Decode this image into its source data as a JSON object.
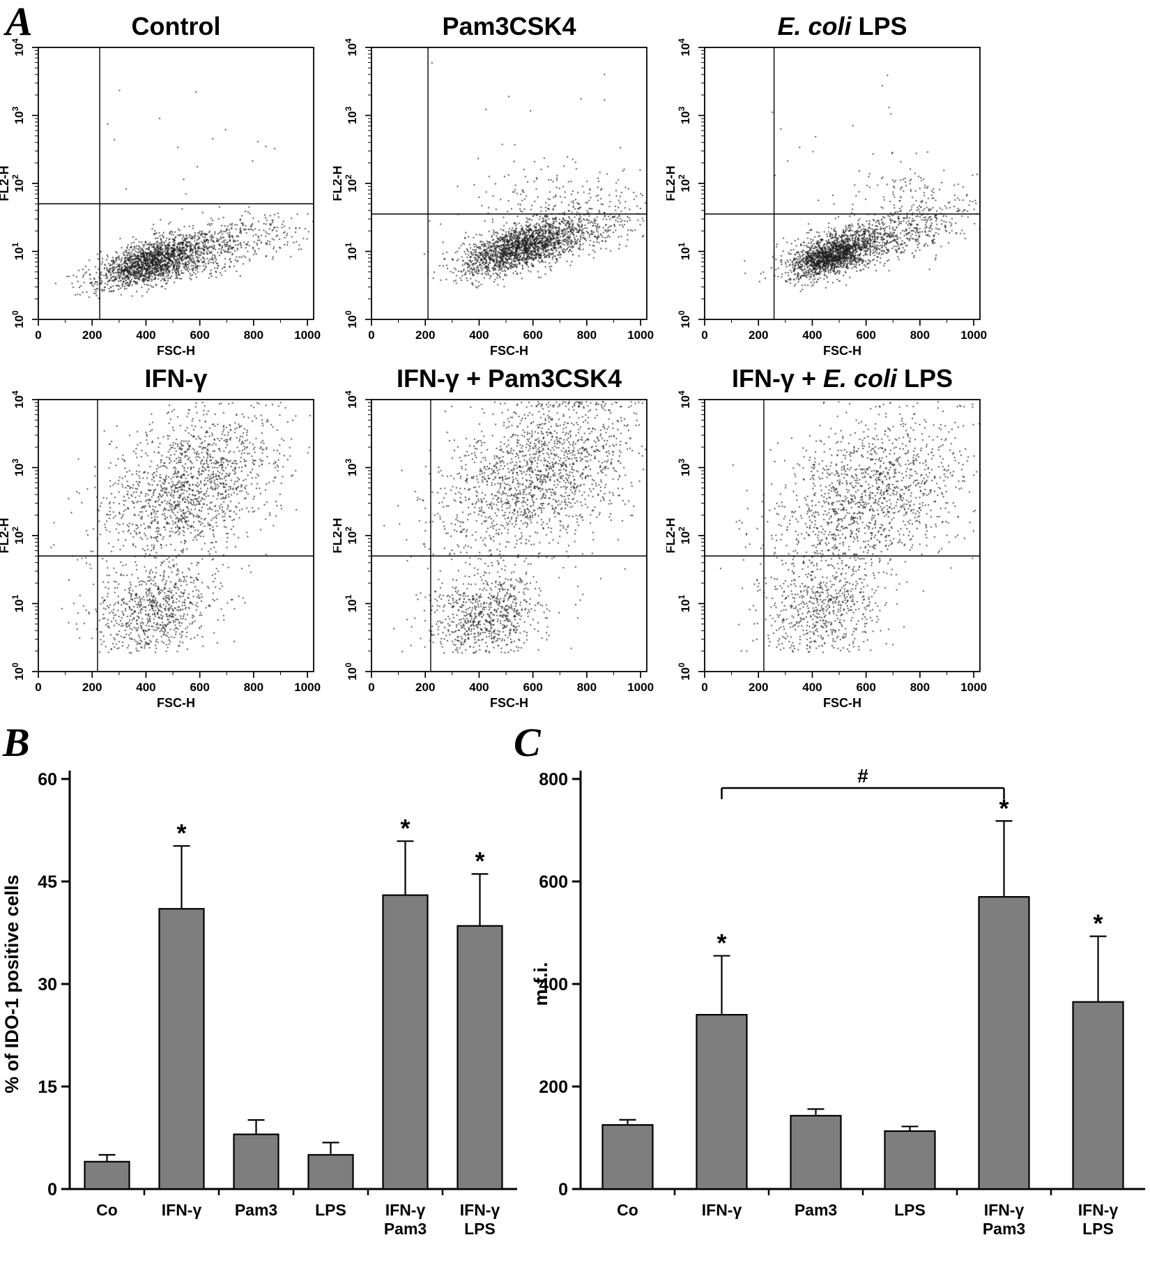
{
  "panels": {
    "a": {
      "label": "A"
    },
    "b": {
      "label": "B"
    },
    "c": {
      "label": "C"
    }
  },
  "style": {
    "bar_fill": "#7e7e7e",
    "dot_color": "#1a1a1a",
    "axis_color": "#000000"
  },
  "chart_data": [
    {
      "type": "scatter",
      "panel": "A",
      "xlabel": "FSC-H",
      "ylabel": "FL2-H",
      "xlim": [
        0,
        1023
      ],
      "x_ticks": [
        0,
        200,
        400,
        600,
        800,
        1000
      ],
      "y_scale": "log",
      "y_decades": [
        0,
        1,
        2,
        3,
        4
      ],
      "plots": [
        {
          "name": "control",
          "title": [
            {
              "text": "Control",
              "italic": false
            }
          ],
          "gate_x": 228,
          "gate_y_log": 1.7,
          "clusters": [
            {
              "n": 1500,
              "cx": 420,
              "sx": 100,
              "cy": 0.85,
              "sy": 0.15,
              "slope": 0.0011
            },
            {
              "n": 800,
              "cx": 600,
              "sx": 190,
              "cy": 1.02,
              "sy": 0.18,
              "slope": 0.0009
            },
            {
              "n": 22,
              "cx": 550,
              "sx": 230,
              "cy": 2.2,
              "sy": 0.55,
              "slope": 0
            }
          ]
        },
        {
          "name": "pam3csk4",
          "title": [
            {
              "text": "Pam3CSK4",
              "italic": false
            }
          ],
          "gate_x": 210,
          "gate_y_log": 1.55,
          "clusters": [
            {
              "n": 1500,
              "cx": 540,
              "sx": 110,
              "cy": 1.05,
              "sy": 0.16,
              "slope": 0.0012
            },
            {
              "n": 700,
              "cx": 680,
              "sx": 170,
              "cy": 1.2,
              "sy": 0.2,
              "slope": 0.0009
            },
            {
              "n": 130,
              "cx": 700,
              "sx": 160,
              "cy": 1.8,
              "sy": 0.2,
              "slope": 0.0005
            },
            {
              "n": 35,
              "cx": 650,
              "sx": 200,
              "cy": 2.35,
              "sy": 0.5,
              "slope": 0
            }
          ]
        },
        {
          "name": "ecoli-lps",
          "title": [
            {
              "text": "E. coli",
              "italic": true
            },
            {
              "text": " LPS",
              "italic": false
            }
          ],
          "gate_x": 258,
          "gate_y_log": 1.55,
          "clusters": [
            {
              "n": 1500,
              "cx": 470,
              "sx": 75,
              "cy": 0.95,
              "sy": 0.14,
              "slope": 0.0013
            },
            {
              "n": 800,
              "cx": 650,
              "sx": 170,
              "cy": 1.2,
              "sy": 0.2,
              "slope": 0.001
            },
            {
              "n": 110,
              "cx": 760,
              "sx": 150,
              "cy": 1.85,
              "sy": 0.2,
              "slope": 0
            },
            {
              "n": 18,
              "cx": 600,
              "sx": 260,
              "cy": 2.6,
              "sy": 0.6,
              "slope": 0
            }
          ]
        },
        {
          "name": "ifng",
          "title": [
            {
              "text": "IFN-γ",
              "italic": false
            }
          ],
          "gate_x": 220,
          "gate_y_log": 1.7,
          "clusters": [
            {
              "n": 1500,
              "cx": 560,
              "sx": 165,
              "cy": 2.7,
              "sy": 0.52,
              "slope": 0.0013
            },
            {
              "n": 750,
              "cx": 430,
              "sx": 115,
              "cy": 0.9,
              "sy": 0.33,
              "slope": 0.0008
            }
          ]
        },
        {
          "name": "ifng-pam3csk4",
          "title": [
            {
              "text": "IFN-γ + Pam3CSK4",
              "italic": false
            }
          ],
          "gate_x": 220,
          "gate_y_log": 1.7,
          "clusters": [
            {
              "n": 1650,
              "cx": 620,
              "sx": 185,
              "cy": 2.9,
              "sy": 0.55,
              "slope": 0.0012
            },
            {
              "n": 800,
              "cx": 430,
              "sx": 110,
              "cy": 0.85,
              "sy": 0.35,
              "slope": 0.0005
            }
          ]
        },
        {
          "name": "ifng-ecoli-lps",
          "title": [
            {
              "text": "IFN-γ + ",
              "italic": false
            },
            {
              "text": "E. coli",
              "italic": true
            },
            {
              "text": " LPS",
              "italic": false
            }
          ],
          "gate_x": 220,
          "gate_y_log": 1.7,
          "clusters": [
            {
              "n": 1400,
              "cx": 610,
              "sx": 185,
              "cy": 2.6,
              "sy": 0.55,
              "slope": 0.0013
            },
            {
              "n": 650,
              "cx": 430,
              "sx": 115,
              "cy": 0.9,
              "sy": 0.4,
              "slope": 0.0005
            }
          ]
        }
      ]
    },
    {
      "type": "bar",
      "panel": "B",
      "ylabel": "% of IDO-1 positive cells",
      "categories": [
        [
          "Co"
        ],
        [
          "IFN-γ"
        ],
        [
          "Pam3"
        ],
        [
          "LPS"
        ],
        [
          "IFN-γ",
          "Pam3"
        ],
        [
          "IFN-γ",
          "LPS"
        ]
      ],
      "values": [
        4,
        41,
        8,
        5,
        43,
        38.5
      ],
      "errors": [
        1,
        9.2,
        2.1,
        1.8,
        7.9,
        7.6
      ],
      "significance": [
        "",
        "*",
        "",
        "",
        "*",
        "*"
      ],
      "ylim": [
        0,
        60
      ],
      "yticks": [
        0,
        15,
        30,
        45,
        60
      ]
    },
    {
      "type": "bar",
      "panel": "C",
      "ylabel": "m.f.i.",
      "categories": [
        [
          "Co"
        ],
        [
          "IFN-γ"
        ],
        [
          "Pam3"
        ],
        [
          "LPS"
        ],
        [
          "IFN-γ",
          "Pam3"
        ],
        [
          "IFN-γ",
          "LPS"
        ]
      ],
      "values": [
        125,
        340,
        143,
        113,
        570,
        365
      ],
      "errors": [
        10,
        115,
        13,
        9,
        148,
        128
      ],
      "significance": [
        "",
        "*",
        "",
        "",
        "*",
        "*"
      ],
      "bracket": {
        "from": 1,
        "to": 4,
        "label": "#"
      },
      "ylim": [
        0,
        800
      ],
      "yticks": [
        0,
        200,
        400,
        600,
        800
      ]
    }
  ]
}
